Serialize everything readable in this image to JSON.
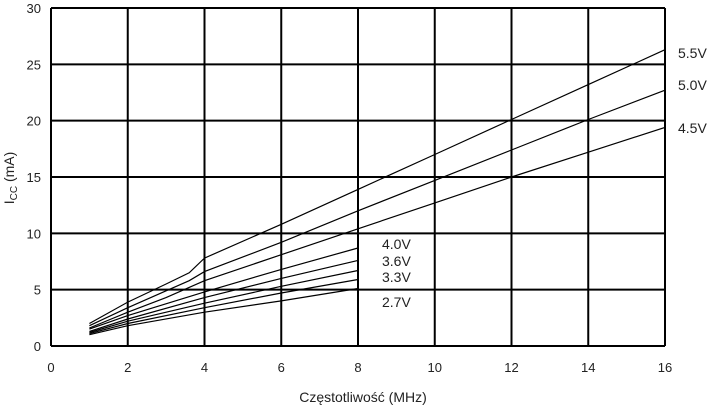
{
  "chart_data": {
    "type": "line",
    "title": "",
    "xlabel": "Częstotliwość (MHz)",
    "ylabel_main": "I",
    "ylabel_sub": "CC",
    "ylabel_unit": " (mA)",
    "xlim": [
      0,
      16
    ],
    "ylim": [
      0,
      30
    ],
    "x_ticks": [
      "0",
      "2",
      "4",
      "6",
      "8",
      "10",
      "12",
      "14",
      "16"
    ],
    "y_ticks": [
      "0",
      "5",
      "10",
      "15",
      "20",
      "25",
      "30"
    ],
    "grid": true,
    "series": [
      {
        "name": "5.5V",
        "x": [
          1,
          2,
          3,
          3.6,
          4,
          6,
          8,
          10,
          12,
          14,
          16
        ],
        "y": [
          2.0,
          3.9,
          5.5,
          6.5,
          7.8,
          10.8,
          13.9,
          17.0,
          20.1,
          23.2,
          26.3
        ]
      },
      {
        "name": "5.0V",
        "x": [
          1,
          2,
          3,
          3.6,
          4,
          6,
          8,
          10,
          12,
          14,
          16
        ],
        "y": [
          1.8,
          3.4,
          4.9,
          5.8,
          6.6,
          9.2,
          12.0,
          14.7,
          17.4,
          20.1,
          22.7
        ]
      },
      {
        "name": "4.5V",
        "x": [
          1,
          2,
          3,
          4,
          6,
          8,
          10,
          12,
          14,
          16
        ],
        "y": [
          1.6,
          3.0,
          4.3,
          5.8,
          8.1,
          10.4,
          12.7,
          15.0,
          17.2,
          19.4
        ]
      },
      {
        "name": "4.0V",
        "x": [
          1,
          2,
          4,
          6,
          8
        ],
        "y": [
          1.5,
          2.7,
          4.8,
          6.8,
          8.7
        ]
      },
      {
        "name": "3.6V",
        "x": [
          1,
          2,
          4,
          6,
          8
        ],
        "y": [
          1.3,
          2.4,
          4.3,
          6.0,
          7.6
        ]
      },
      {
        "name": "3.3V",
        "x": [
          1,
          2,
          4,
          6,
          8
        ],
        "y": [
          1.2,
          2.2,
          3.8,
          5.3,
          6.7
        ]
      },
      {
        "name": "",
        "x": [
          1,
          2,
          4,
          6,
          8
        ],
        "y": [
          1.1,
          2.0,
          3.4,
          4.7,
          5.9
        ]
      },
      {
        "name": "2.7V",
        "x": [
          1,
          2,
          4,
          6,
          8
        ],
        "y": [
          1.0,
          1.8,
          3.0,
          4.0,
          5.1
        ]
      }
    ],
    "colors": {
      "lines": "#000000",
      "grid": "#000000",
      "background": "#ffffff"
    }
  }
}
